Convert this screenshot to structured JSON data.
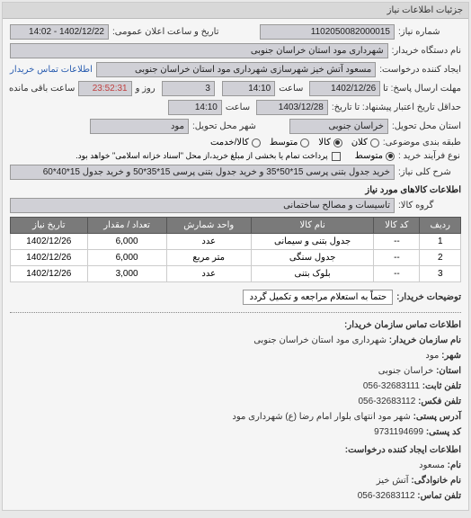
{
  "panel_title": "جزئیات اطلاعات نیاز",
  "header": {
    "number_label": "شماره نیاز:",
    "number_value": "1102050082000015",
    "datetime_label": "تاریخ و ساعت اعلان عمومی:",
    "datetime_value": "1402/12/22 - 14:02",
    "org_label": "نام دستگاه خریدار:",
    "org_value": "شهرداری مود استان خراسان جنوبی",
    "requester_label": "ایجاد کننده درخواست:",
    "requester_value": "مسعود آتش خیز شهرسازی شهرداری مود استان خراسان جنوبی",
    "contact_link": "اطلاعات تماس خریدار"
  },
  "deadlines": {
    "response_label": "مهلت ارسال پاسخ: تا",
    "response_date": "1402/12/26",
    "hour_label": "ساعت",
    "response_time": "14:10",
    "remain_day": "3",
    "remain_day_label": "روز و",
    "remain_time": "23:52:31",
    "remain_rest": "ساعت باقی مانده",
    "validity_label": "حداقل تاریخ اعتبار پیشنهاد: تا تاریخ:",
    "validity_date": "1403/12/28",
    "validity_time": "14:10"
  },
  "location": {
    "province_label": "استان محل تحویل:",
    "province_value": "خراسان جنوبی",
    "city_label": "شهر محل تحویل:",
    "city_value": "مود"
  },
  "grade": {
    "label": "طبقه بندی موضوعی:",
    "options": [
      "کلان",
      "کالا",
      "متوسط",
      "کالا/خدمت"
    ],
    "selected": 1
  },
  "process": {
    "label": "نوع فرآیند خرید :",
    "options": [
      "متوسط"
    ],
    "note": "پرداخت تمام یا بخشی از مبلغ خرید،از محل \"اسناد خزانه اسلامی\" خواهد بود.",
    "checkbox_checked": false
  },
  "need": {
    "label": "شرح کلی نیاز:",
    "value": "خرید جدول بتنی پرسی 15*50*35 و خرید جدول بتنی پرسی 15*35*50 و خرید جدول 15*40*60"
  },
  "goods": {
    "title": "اطلاعات کالاهای مورد نیاز",
    "group_label": "گروه کالا:",
    "group_value": "تاسیسات و مصالح ساختمانی"
  },
  "table": {
    "columns": [
      "ردیف",
      "کد کالا",
      "نام کالا",
      "واحد شمارش",
      "تعداد / مقدار",
      "تاریخ نیاز"
    ],
    "rows": [
      [
        "1",
        "--",
        "جدول بتنی و سیمانی",
        "عدد",
        "6,000",
        "1402/12/26"
      ],
      [
        "2",
        "--",
        "جدول سنگی",
        "متر مربع",
        "6,000",
        "1402/12/26"
      ],
      [
        "3",
        "--",
        "بلوک بتنی",
        "عدد",
        "3,000",
        "1402/12/26"
      ]
    ]
  },
  "buyer_note": {
    "label": "توضیحات خریدار:",
    "value": "حتماً به استعلام مراجعه و تکمیل گردد"
  },
  "contact": {
    "title": "اطلاعات تماس سازمان خریدار:",
    "lines": [
      {
        "label": "نام سازمان خریدار:",
        "value": "شهرداری مود استان خراسان جنوبی"
      },
      {
        "label": "شهر:",
        "value": "مود"
      },
      {
        "label": "استان:",
        "value": "خراسان جنوبی"
      },
      {
        "label": "تلفن ثابت:",
        "value": "32683111-056"
      },
      {
        "label": "تلفن فکس:",
        "value": "32683112-056"
      },
      {
        "label": "آدرس پستی:",
        "value": "شهر مود انتهای بلوار امام رضا (ع) شهرداری مود"
      },
      {
        "label": "کد پستی:",
        "value": "9731194699"
      }
    ],
    "creator_title": "اطلاعات ایجاد کننده درخواست:",
    "creator_lines": [
      {
        "label": "نام:",
        "value": "مسعود"
      },
      {
        "label": "نام خانوادگی:",
        "value": "آتش خیز"
      },
      {
        "label": "تلفن تماس:",
        "value": "32683112-056"
      }
    ]
  }
}
